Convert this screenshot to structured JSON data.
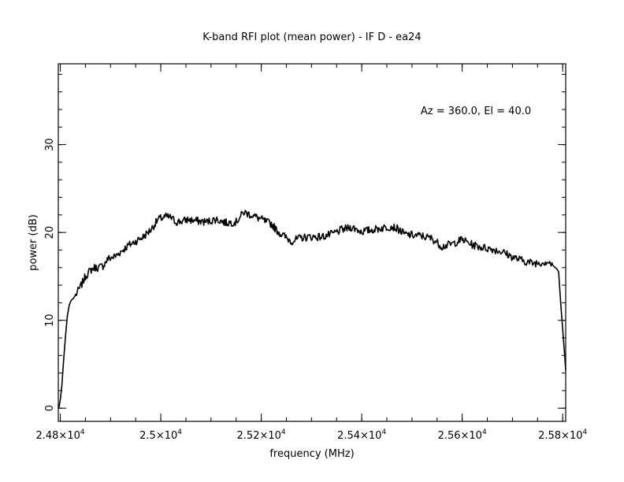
{
  "chart_data": {
    "type": "line",
    "title": "K-band RFI plot (mean power) - IF D - ea24",
    "xlabel": "frequency (MHz)",
    "ylabel": "power (dB)",
    "annotation": "Az = 360.0, El = 40.0",
    "xlim": [
      24796,
      25806
    ],
    "ylim": [
      -1.5,
      39.2
    ],
    "x_ticks": [
      {
        "value": 24800,
        "mantissa": "2.48",
        "exp": "4"
      },
      {
        "value": 25000,
        "mantissa": "2.5",
        "exp": "4"
      },
      {
        "value": 25200,
        "mantissa": "2.52",
        "exp": "4"
      },
      {
        "value": 25400,
        "mantissa": "2.54",
        "exp": "4"
      },
      {
        "value": 25600,
        "mantissa": "2.56",
        "exp": "4"
      },
      {
        "value": 25800,
        "mantissa": "2.58",
        "exp": "4"
      }
    ],
    "y_ticks": [
      {
        "value": 0,
        "label": "0"
      },
      {
        "value": 10,
        "label": "10"
      },
      {
        "value": 20,
        "label": "20"
      },
      {
        "value": 30,
        "label": "30"
      }
    ],
    "x_minor_step": 50,
    "y_minor_step": 2,
    "grid": false,
    "series": [
      {
        "color": "#000000",
        "x": [
          24797,
          24800,
          24803,
          24806,
          24810,
          24814,
          24818,
          24822,
          24826,
          24832,
          24840,
          24850,
          24860,
          24868,
          24876,
          24885,
          24895,
          24910,
          24920,
          24935,
          24950,
          24965,
          24980,
          24995,
          25010,
          25020,
          25030,
          25045,
          25055,
          25060,
          25075,
          25090,
          25110,
          25130,
          25150,
          25165,
          25180,
          25200,
          25210,
          25220,
          25230,
          25240,
          25260,
          25280,
          25300,
          25320,
          25340,
          25360,
          25380,
          25400,
          25420,
          25440,
          25460,
          25475,
          25485,
          25500,
          25520,
          25540,
          25560,
          25580,
          25600,
          25620,
          25640,
          25660,
          25680,
          25700,
          25720,
          25740,
          25760,
          25770,
          25780,
          25785,
          25788,
          25792,
          25796,
          25800,
          25804,
          25806
        ],
        "y": [
          0,
          1,
          2.5,
          5,
          8,
          10.5,
          11.8,
          12.3,
          12.5,
          13,
          13.8,
          15,
          15.7,
          16,
          16,
          16.2,
          17,
          17.3,
          17.8,
          18.5,
          19,
          19.5,
          20.3,
          21.5,
          21.8,
          21.7,
          21.2,
          21.3,
          21.5,
          21.4,
          21.3,
          21.2,
          21.5,
          21.1,
          21.2,
          22.3,
          22,
          21.5,
          21.2,
          21,
          20.3,
          19.8,
          19,
          19.4,
          19.5,
          19.5,
          19.8,
          20.3,
          20.6,
          20.1,
          20.3,
          20.5,
          20.7,
          20.3,
          19.8,
          19.7,
          19.6,
          19.3,
          18.4,
          18.7,
          19.2,
          18.6,
          18.3,
          18.1,
          17.8,
          17.2,
          16.8,
          16.5,
          16.6,
          16.7,
          16.3,
          16,
          15.9,
          15.5,
          12,
          9,
          6,
          4.3
        ]
      }
    ]
  }
}
